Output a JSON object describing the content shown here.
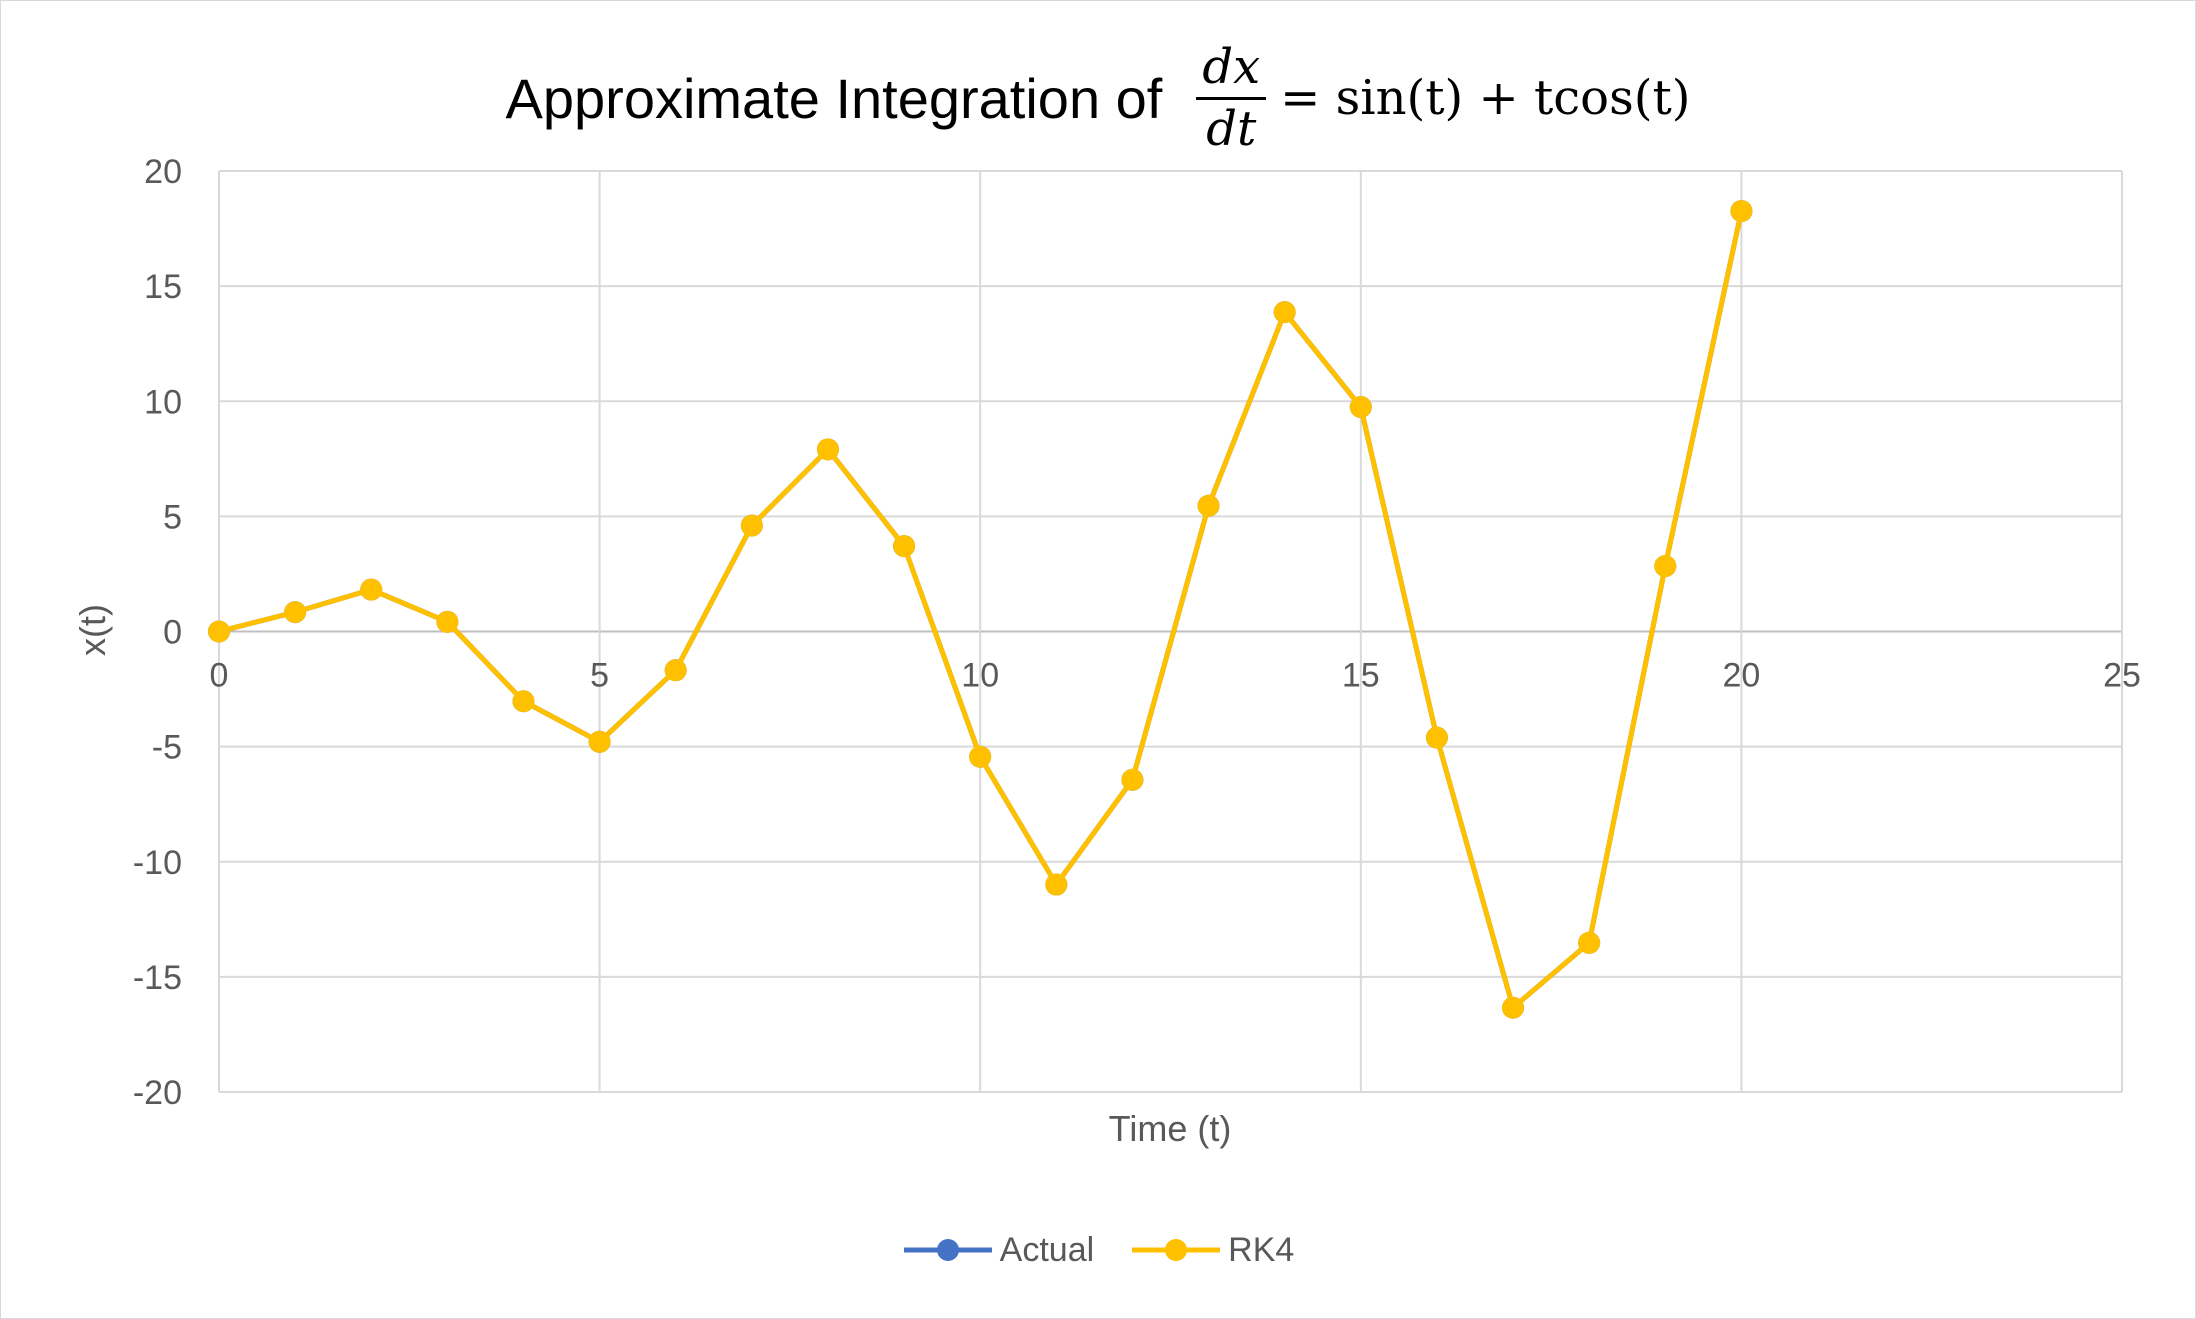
{
  "chart_data": {
    "type": "scatter",
    "title_text": "Approximate Integration of",
    "title_equation": {
      "numerator": "dx",
      "denominator": "dt",
      "rest": "= sin(t) + tcos(t)"
    },
    "xlabel": "Time (t)",
    "ylabel": "x(t)",
    "xlim": [
      0,
      25
    ],
    "ylim": [
      -20,
      20
    ],
    "x_ticks": [
      0,
      5,
      10,
      15,
      20,
      25
    ],
    "y_ticks": [
      20,
      15,
      10,
      5,
      0,
      -5,
      -10,
      -15,
      -20
    ],
    "grid": true,
    "legend_position": "bottom",
    "series": [
      {
        "name": "Actual",
        "color": "#4472C4",
        "x": [
          0,
          1,
          2,
          3,
          4,
          5,
          6,
          7,
          8,
          9,
          10,
          11,
          12,
          13,
          14,
          15,
          16,
          17,
          18,
          19,
          20
        ],
        "y": [
          0,
          0.84,
          1.82,
          0.42,
          -3.03,
          -4.79,
          -1.68,
          4.6,
          7.91,
          3.71,
          -5.44,
          -10.99,
          -6.44,
          5.46,
          13.87,
          9.75,
          -4.61,
          -16.34,
          -13.52,
          2.84,
          18.26
        ]
      },
      {
        "name": "RK4",
        "color": "#FFC000",
        "x": [
          0,
          1,
          2,
          3,
          4,
          5,
          6,
          7,
          8,
          9,
          10,
          11,
          12,
          13,
          14,
          15,
          16,
          17,
          18,
          19,
          20
        ],
        "y": [
          0,
          0.84,
          1.82,
          0.42,
          -3.03,
          -4.79,
          -1.68,
          4.6,
          7.91,
          3.71,
          -5.44,
          -10.99,
          -6.44,
          5.46,
          13.87,
          9.75,
          -4.61,
          -16.34,
          -13.52,
          2.84,
          18.26
        ]
      }
    ]
  }
}
